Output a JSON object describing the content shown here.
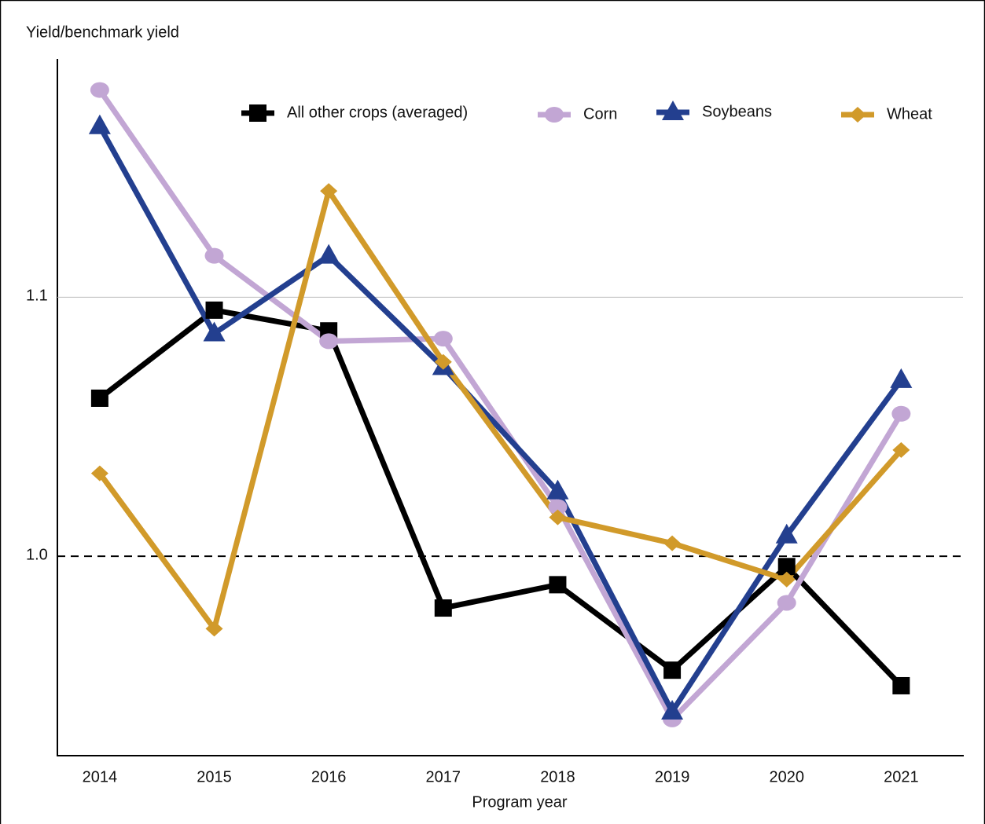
{
  "chart_data": {
    "type": "line",
    "y_label": "Yield/benchmark yield",
    "x_label": "Program year",
    "x": [
      2014,
      2015,
      2016,
      2017,
      2018,
      2019,
      2020,
      2021
    ],
    "xlim": [
      2013.63,
      2021.54
    ],
    "xticks": [
      2014,
      2015,
      2016,
      2017,
      2018,
      2019,
      2020,
      2021
    ],
    "ylim": [
      0.923,
      1.192
    ],
    "yticks": [
      {
        "value": 1,
        "label": "1.0"
      },
      1.1
    ],
    "baseline": 1,
    "grid": true,
    "series": [
      {
        "name": "All other crops (averaged)",
        "color": "#000000",
        "marker": "square",
        "values": [
          1.061,
          1.095,
          1.087,
          0.98,
          0.989,
          0.956,
          0.996,
          0.95
        ]
      },
      {
        "name": "Corn",
        "color": "#c2a6d4",
        "marker": "circle",
        "values": [
          1.18,
          1.116,
          1.083,
          1.084,
          1.019,
          0.937,
          0.982,
          1.055
        ]
      },
      {
        "name": "Soybeans",
        "color": "#233f8f",
        "marker": "triangle",
        "values": [
          1.166,
          1.086,
          1.116,
          1.073,
          1.025,
          0.94,
          1.008,
          1.068
        ]
      },
      {
        "name": "Wheat",
        "color": "#d19a2a",
        "marker": "diamond",
        "values": [
          1.032,
          0.972,
          1.141,
          1.075,
          1.015,
          1.005,
          0.991,
          1.041
        ]
      }
    ]
  }
}
